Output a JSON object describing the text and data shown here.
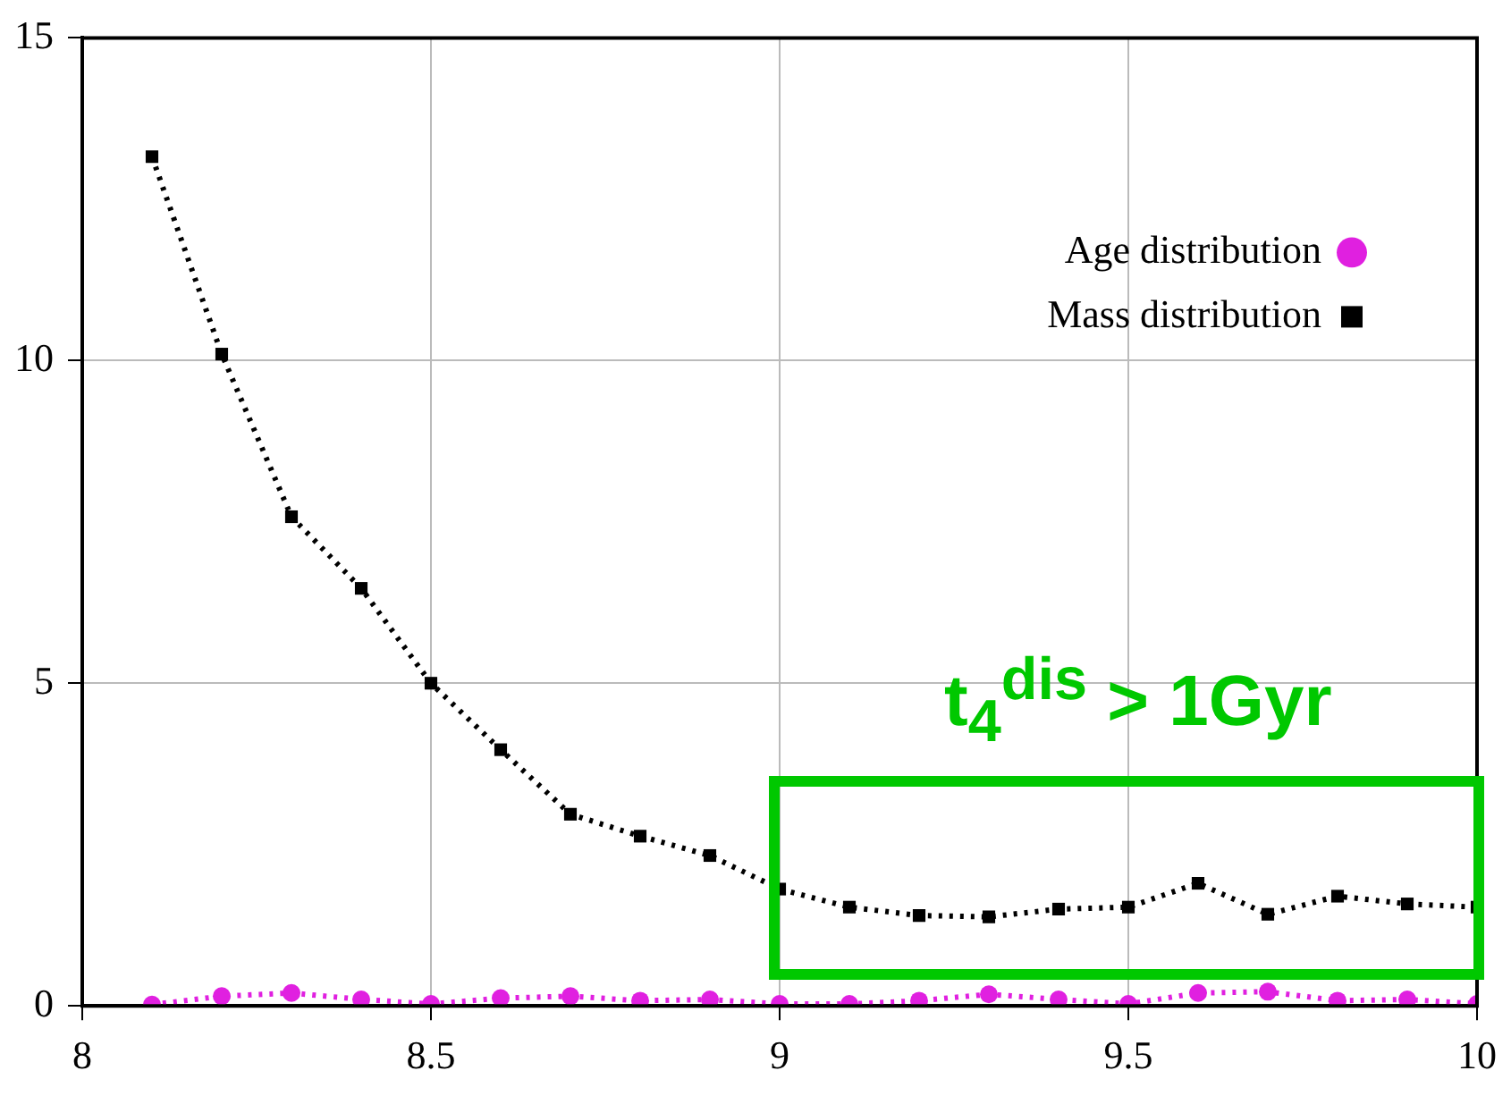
{
  "chart_data": {
    "type": "line",
    "x": [
      8.1,
      8.2,
      8.3,
      8.4,
      8.5,
      8.6,
      8.7,
      8.8,
      8.9,
      9.0,
      9.1,
      9.2,
      9.3,
      9.4,
      9.5,
      9.6,
      9.7,
      9.8,
      9.9,
      10.0
    ],
    "series": [
      {
        "name": "Age distribution",
        "color": "#e020e0",
        "marker": "circle",
        "values": [
          0.02,
          0.15,
          0.2,
          0.1,
          0.03,
          0.12,
          0.15,
          0.08,
          0.1,
          0.03,
          0.03,
          0.08,
          0.18,
          0.1,
          0.03,
          0.2,
          0.22,
          0.08,
          0.1,
          0.03
        ]
      },
      {
        "name": "Mass distribution",
        "color": "#000000",
        "marker": "square",
        "values": [
          13.16,
          10.1,
          7.58,
          6.47,
          5.0,
          3.97,
          2.97,
          2.63,
          2.33,
          1.81,
          1.53,
          1.4,
          1.38,
          1.5,
          1.53,
          1.9,
          1.42,
          1.7,
          1.58,
          1.53
        ]
      }
    ],
    "xlim": [
      8,
      10
    ],
    "xticks": [
      8,
      8.5,
      9,
      9.5,
      10
    ],
    "ylim": [
      0,
      15
    ],
    "yticks": [
      0,
      5,
      10,
      15
    ],
    "grid": true,
    "legend": "top right",
    "line_style": "dotted",
    "annotations": [
      "t$_{4}$$^{dis}$ > 1Gyr"
    ]
  }
}
